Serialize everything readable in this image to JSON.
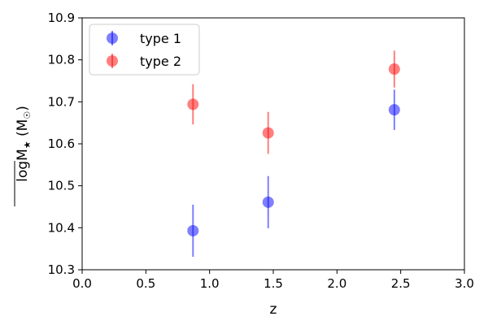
{
  "chart_data": {
    "type": "scatter",
    "xlabel": "z",
    "ylabel": "logM★ (M☉)",
    "ylabel_parts": {
      "main": "logM",
      "sub": "★",
      "unit": " (M",
      "unit_sub": "☉",
      "close": ")"
    },
    "xlim": [
      0.0,
      3.0
    ],
    "ylim": [
      10.3,
      10.9
    ],
    "xticks": [
      0.0,
      0.5,
      1.0,
      1.5,
      2.0,
      2.5,
      3.0
    ],
    "xtick_labels": [
      "0.0",
      "0.5",
      "1.0",
      "1.5",
      "2.0",
      "2.5",
      "3.0"
    ],
    "yticks": [
      10.3,
      10.4,
      10.5,
      10.6,
      10.7,
      10.8,
      10.9
    ],
    "ytick_labels": [
      "10.3",
      "10.4",
      "10.5",
      "10.6",
      "10.7",
      "10.8",
      "10.9"
    ],
    "grid": false,
    "legend": "top-left",
    "series": [
      {
        "name": "type 1",
        "color": "#0000ff",
        "x": [
          0.87,
          1.46,
          2.45
        ],
        "y": [
          10.393,
          10.461,
          10.681
        ],
        "yerr": [
          0.062,
          0.062,
          0.048
        ]
      },
      {
        "name": "type 2",
        "color": "#ff0000",
        "x": [
          0.87,
          1.46,
          2.45
        ],
        "y": [
          10.694,
          10.626,
          10.778
        ],
        "yerr": [
          0.048,
          0.05,
          0.044
        ]
      }
    ]
  }
}
